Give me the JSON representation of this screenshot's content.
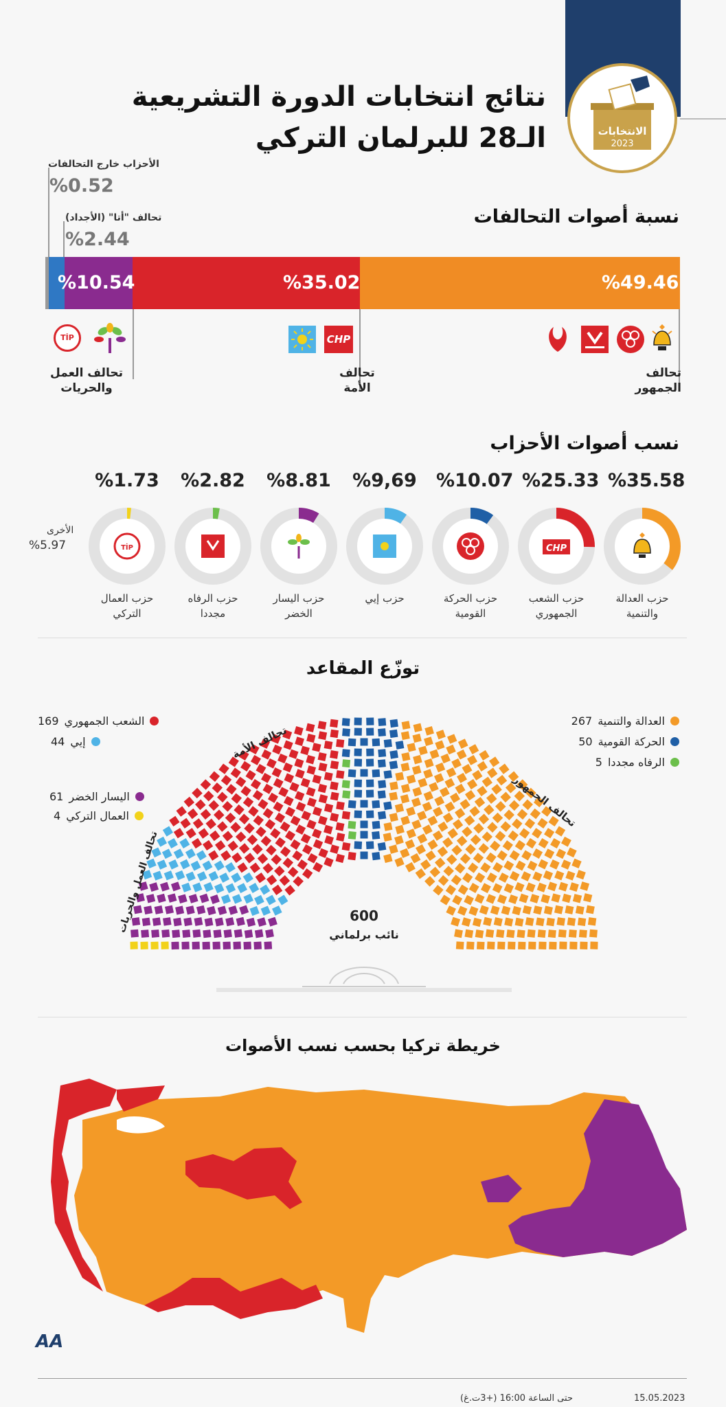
{
  "header": {
    "title_line1": "نتائج انتخابات الدورة التشريعية",
    "title_line2": "الـ28 للبرلمان التركي",
    "logo_text": "الانتخابات",
    "logo_year": "2023",
    "colors": {
      "navy": "#1f3f6c",
      "gold": "#c9a24b"
    }
  },
  "coalitions": {
    "section_title": "نسبة أصوات التحالفات",
    "outside_label": "الأحزاب خارج التحالفات",
    "outside_pct": "%0.52",
    "ata_label": "تحالف \"أتا\" (الأجداد)",
    "ata_pct": "%2.44",
    "labor_pct": "%10.54",
    "nation_pct": "%35.02",
    "people_pct": "%49.46",
    "labor_name_l1": "تحالف العمل",
    "labor_name_l2": "والحريات",
    "nation_name_l1": "تحالف",
    "nation_name_l2": "الأمة",
    "people_name_l1": "تحالف",
    "people_name_l2": "الجمهور"
  },
  "chart_data": [
    {
      "type": "bar",
      "title": "نسبة أصوات التحالفات",
      "categories": [
        "تحالف الجمهور",
        "تحالف الأمة",
        "تحالف العمل والحريات",
        "تحالف \"أتا\" (الأجداد)",
        "الأحزاب خارج التحالفات"
      ],
      "values": [
        49.46,
        35.02,
        10.54,
        2.44,
        0.52
      ],
      "colors": [
        "#f08c24",
        "#d9242a",
        "#8a2b8f",
        "#2f78c4",
        "#999999"
      ]
    },
    {
      "type": "pie",
      "title": "نسب أصوات الأحزاب",
      "categories": [
        "حزب العدالة والتنمية",
        "حزب الشعب الجمهوري",
        "حزب الحركة القومية",
        "حزب إيي",
        "حزب اليسار الخضر",
        "حزب الرفاه مجددا",
        "حزب العمال التركي",
        "الأخرى"
      ],
      "values": [
        35.58,
        25.33,
        10.07,
        9.69,
        8.81,
        2.82,
        1.73,
        5.97
      ],
      "colors": [
        "#f39a27",
        "#d9242a",
        "#1f5fa6",
        "#4fb3e6",
        "#8a2b8f",
        "#6cbf4b",
        "#f2d21a",
        "#cccccc"
      ]
    },
    {
      "type": "bar",
      "title": "توزّع المقاعد",
      "categories": [
        "العدالة والتنمية",
        "الحركة القومية",
        "الرفاه مجددا",
        "الشعب الجمهوري",
        "إيي",
        "اليسار الخضر",
        "العمال التركي"
      ],
      "values": [
        267,
        50,
        5,
        169,
        44,
        61,
        4
      ],
      "total": 600,
      "colors": [
        "#f39a27",
        "#1f5fa6",
        "#6cbf4b",
        "#d9242a",
        "#4fb3e6",
        "#8a2b8f",
        "#f2d21a"
      ]
    }
  ],
  "parties": {
    "section_title": "نسب أصوات الأحزاب",
    "others_label": "الأخرى",
    "others_pct": "%5.97",
    "items": [
      {
        "pct": "%35.58",
        "name_l1": "حزب العدالة",
        "name_l2": "والتنمية"
      },
      {
        "pct": "%25.33",
        "name_l1": "حزب الشعب",
        "name_l2": "الجمهوري"
      },
      {
        "pct": "%10.07",
        "name_l1": "حزب الحركة",
        "name_l2": "القومية"
      },
      {
        "pct": "%9,69",
        "name_l1": "حزب إيي",
        "name_l2": ""
      },
      {
        "pct": "%8.81",
        "name_l1": "حزب اليسار",
        "name_l2": "الخضر"
      },
      {
        "pct": "%2.82",
        "name_l1": "حزب الرفاه",
        "name_l2": "مجددا"
      },
      {
        "pct": "%1.73",
        "name_l1": "حزب العمال",
        "name_l2": "التركي"
      }
    ]
  },
  "seats": {
    "section_title": "توزّع المقاعد",
    "total": "600",
    "total_label": "نائب برلماني",
    "people_alliance": "تحالف الجمهور",
    "nation_alliance": "تحالف الأمة",
    "labor_alliance": "تحالف العمل والحريات",
    "legend_right": [
      {
        "name": "العدالة والتنمية",
        "num": "267",
        "color": "#f39a27"
      },
      {
        "name": "الحركة القومية",
        "num": "50",
        "color": "#1f5fa6"
      },
      {
        "name": "الرفاه مجددا",
        "num": "5",
        "color": "#6cbf4b"
      }
    ],
    "legend_left_top": [
      {
        "name": "الشعب الجمهوري",
        "num": "169",
        "color": "#d9242a"
      },
      {
        "name": "إيي",
        "num": "44",
        "color": "#4fb3e6"
      }
    ],
    "legend_left_bottom": [
      {
        "name": "اليسار الخضر",
        "num": "61",
        "color": "#8a2b8f"
      },
      {
        "name": "العمال التركي",
        "num": "4",
        "color": "#f2d21a"
      }
    ]
  },
  "map": {
    "section_title": "خريطة تركيا بحسب نسب الأصوات",
    "colors": {
      "akp": "#f39a27",
      "chp": "#d9242a",
      "ysp": "#8a2b8f"
    }
  },
  "footer": {
    "date": "15.05.2023",
    "time": "حتى الساعة 16:00 (+3ت.غ)",
    "brand": "AA"
  }
}
